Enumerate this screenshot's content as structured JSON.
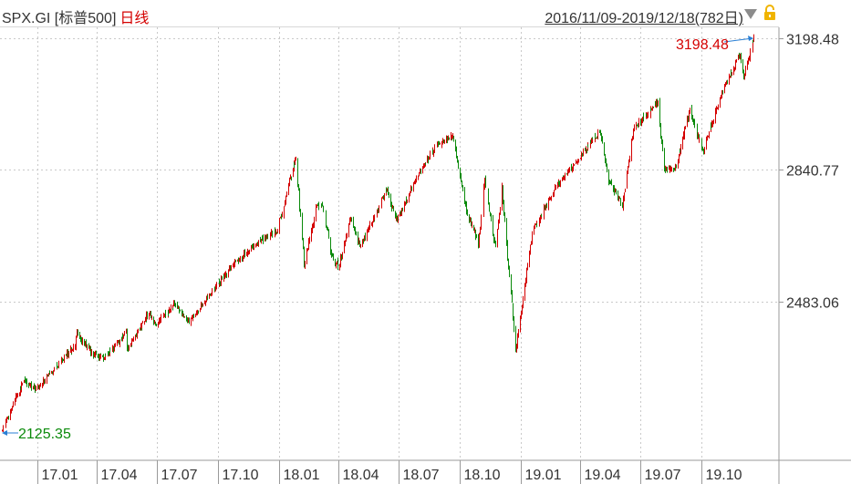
{
  "header": {
    "symbol": "SPX.GI [标普500]",
    "period": "日线",
    "range": "2016/11/09-2019/12/18(782日)",
    "dropdown_icon": "triangle-down-icon",
    "lock_icon": "lock-icon"
  },
  "colors": {
    "up": "#d40000",
    "down": "#0a8a0a",
    "grid": "#c9c9c9",
    "axis_text": "#333333",
    "high_label": "#d40000",
    "low_label": "#0a8a0a",
    "marker": "#2a7fd4",
    "lock": "#f0b400"
  },
  "chart_data": {
    "type": "candlestick",
    "title": "SPX.GI [标普500] 日线",
    "x_range": [
      "2016-11-09",
      "2019-12-18"
    ],
    "y_range": [
      2125.35,
      3198.48
    ],
    "yticks": [
      3198.48,
      2840.77,
      2483.06
    ],
    "xticks": [
      "17.01",
      "17.04",
      "17.07",
      "17.10",
      "18.01",
      "18.04",
      "18.07",
      "18.10",
      "19.01",
      "19.04",
      "19.07",
      "19.10"
    ],
    "grid": true,
    "annotations": {
      "high": {
        "label": "3198.48",
        "value": 3198.48,
        "date": "2019-12-18"
      },
      "low": {
        "label": "2125.35",
        "value": 2125.35,
        "date": "2016-11-09"
      }
    },
    "anchors": [
      [
        "2016-11-09",
        2130
      ],
      [
        "2016-11-25",
        2200
      ],
      [
        "2016-12-13",
        2270
      ],
      [
        "2016-12-30",
        2240
      ],
      [
        "2017-01-26",
        2300
      ],
      [
        "2017-02-28",
        2365
      ],
      [
        "2017-03-01",
        2395
      ],
      [
        "2017-03-27",
        2340
      ],
      [
        "2017-04-13",
        2330
      ],
      [
        "2017-05-16",
        2400
      ],
      [
        "2017-05-17",
        2355
      ],
      [
        "2017-06-19",
        2453
      ],
      [
        "2017-06-29",
        2420
      ],
      [
        "2017-07-27",
        2475
      ],
      [
        "2017-08-18",
        2425
      ],
      [
        "2017-09-20",
        2505
      ],
      [
        "2017-10-20",
        2575
      ],
      [
        "2017-11-30",
        2645
      ],
      [
        "2017-12-29",
        2675
      ],
      [
        "2018-01-26",
        2873
      ],
      [
        "2018-02-08",
        2581
      ],
      [
        "2018-02-27",
        2745
      ],
      [
        "2018-03-08",
        2740
      ],
      [
        "2018-03-23",
        2590
      ],
      [
        "2018-04-02",
        2582
      ],
      [
        "2018-04-18",
        2710
      ],
      [
        "2018-05-03",
        2630
      ],
      [
        "2018-06-12",
        2785
      ],
      [
        "2018-06-27",
        2700
      ],
      [
        "2018-07-27",
        2820
      ],
      [
        "2018-08-29",
        2914
      ],
      [
        "2018-09-20",
        2930
      ],
      [
        "2018-10-11",
        2728
      ],
      [
        "2018-10-29",
        2641
      ],
      [
        "2018-11-07",
        2813
      ],
      [
        "2018-11-23",
        2632
      ],
      [
        "2018-12-03",
        2790
      ],
      [
        "2018-12-24",
        2351
      ],
      [
        "2019-01-18",
        2670
      ],
      [
        "2019-02-22",
        2792
      ],
      [
        "2019-04-30",
        2945
      ],
      [
        "2019-05-13",
        2811
      ],
      [
        "2019-06-03",
        2744
      ],
      [
        "2019-06-20",
        2954
      ],
      [
        "2019-07-26",
        3025
      ],
      [
        "2019-08-05",
        2844
      ],
      [
        "2019-08-23",
        2847
      ],
      [
        "2019-09-13",
        3007
      ],
      [
        "2019-10-02",
        2887
      ],
      [
        "2019-10-28",
        3039
      ],
      [
        "2019-11-27",
        3153
      ],
      [
        "2019-12-03",
        3093
      ],
      [
        "2019-12-18",
        3198
      ]
    ]
  }
}
